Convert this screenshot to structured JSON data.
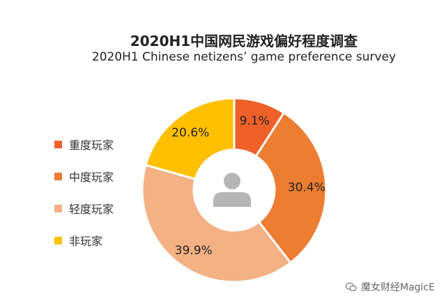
{
  "title_cn": "2020H1中国网民游戏偏好程度调查",
  "title_en": "2020H1 Chinese netizens’ game preference survey",
  "watermark": "魔女财经MagicE",
  "chart_data": {
    "type": "pie",
    "variant": "donut",
    "title": "2020H1中国网民游戏偏好程度调查",
    "subtitle": "2020H1 Chinese netizens’ game preference survey",
    "legend_position": "left",
    "categories": [
      "重度玩家",
      "中度玩家",
      "轻度玩家",
      "非玩家"
    ],
    "values": [
      9.1,
      30.4,
      39.9,
      20.6
    ],
    "labels": [
      "9.1%",
      "30.4%",
      "39.9%",
      "20.6%"
    ],
    "colors": [
      "#F0612A",
      "#ED7D31",
      "#F4B183",
      "#FFC000"
    ]
  },
  "center_icon": "user-avatar-icon",
  "watermark_icon": "wechat-icon"
}
